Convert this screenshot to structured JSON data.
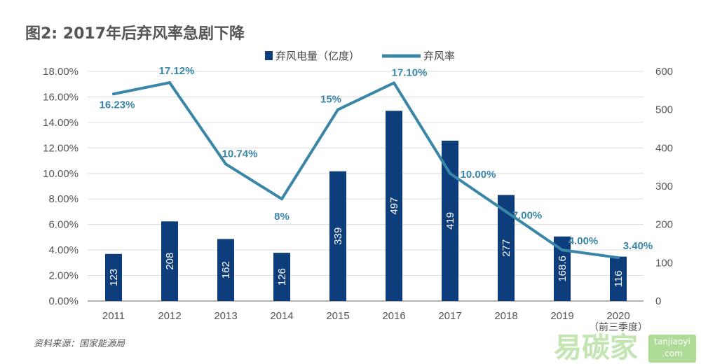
{
  "title": "图2: 2017年后弃风率急剧下降",
  "source": "资料来源：国家能源局",
  "watermark": {
    "text": "易碳家",
    "site": "tanjiaoyi",
    "tld": ".com"
  },
  "chart_data": {
    "type": "bar+line",
    "title": "图2: 2017年后弃风率急剧下降",
    "categories": [
      "2011",
      "2012",
      "2013",
      "2014",
      "2015",
      "2016",
      "2017",
      "2018",
      "2019",
      "2020"
    ],
    "category_note": "（前三季度）",
    "series": [
      {
        "name": "弃风电量（亿度）",
        "type": "bar",
        "axis": "right",
        "color": "#0e3d7c",
        "values": [
          123,
          208,
          162,
          126,
          339,
          497,
          419,
          277,
          168.6,
          116
        ],
        "labels": [
          "123",
          "208",
          "162",
          "126",
          "339",
          "497",
          "419",
          "277",
          "168.6",
          "116"
        ]
      },
      {
        "name": "弃风率",
        "type": "line",
        "axis": "left",
        "color": "#3a86a8",
        "values": [
          16.23,
          17.12,
          10.74,
          8,
          15,
          17.1,
          10.0,
          7.0,
          4.0,
          3.4
        ],
        "labels": [
          "16.23%",
          "17.12%",
          "10.74%",
          "8%",
          "15%",
          "17.10%",
          "10.00%",
          "7.00%",
          "4.00%",
          "3.40%"
        ]
      }
    ],
    "left_axis": {
      "ylim": [
        0,
        18
      ],
      "ticks": [
        "0.00%",
        "2.00%",
        "4.00%",
        "6.00%",
        "8.00%",
        "10.00%",
        "12.00%",
        "14.00%",
        "16.00%",
        "18.00%"
      ]
    },
    "right_axis": {
      "ylim": [
        0,
        600
      ],
      "ticks": [
        "0",
        "100",
        "200",
        "300",
        "400",
        "500",
        "600"
      ]
    },
    "grid": "horizontal",
    "legend": "top-right"
  }
}
